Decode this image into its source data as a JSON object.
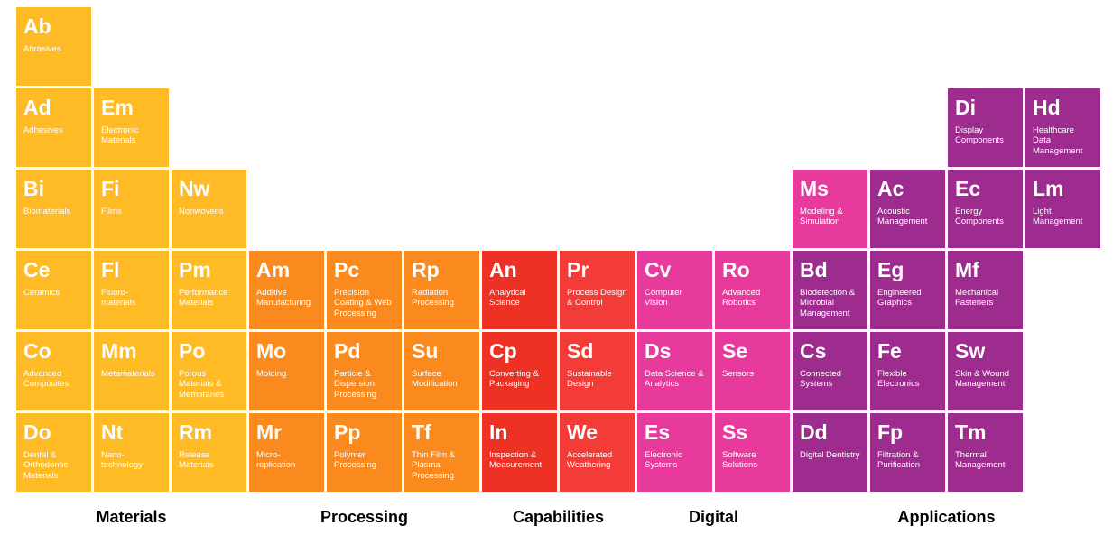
{
  "colors": {
    "materials": "#febb25",
    "processing": "#fa8a1e",
    "capabilities1": "#ed3124",
    "capabilities2": "#f33b38",
    "digital": "#e83a9c",
    "applications": "#9e2b8e"
  },
  "categories": [
    {
      "label": "Materials",
      "col_start": 1,
      "col_span": 3
    },
    {
      "label": "Processing",
      "col_start": 4,
      "col_span": 3
    },
    {
      "label": "Capabilities",
      "col_start": 7,
      "col_span": 2
    },
    {
      "label": "Digital",
      "col_start": 9,
      "col_span": 2
    },
    {
      "label": "Applications",
      "col_start": 11,
      "col_span": 4
    }
  ],
  "cells": [
    {
      "row": 1,
      "col": 1,
      "symbol": "Ab",
      "name": "Abrasives",
      "color_key": "materials"
    },
    {
      "row": 2,
      "col": 1,
      "symbol": "Ad",
      "name": "Adhesives",
      "color_key": "materials"
    },
    {
      "row": 2,
      "col": 2,
      "symbol": "Em",
      "name": "Electronic Materials",
      "color_key": "materials"
    },
    {
      "row": 2,
      "col": 13,
      "symbol": "Di",
      "name": "Display Components",
      "color_key": "applications"
    },
    {
      "row": 2,
      "col": 14,
      "symbol": "Hd",
      "name": "Healthcare Data Management",
      "color_key": "applications"
    },
    {
      "row": 3,
      "col": 1,
      "symbol": "Bi",
      "name": "Biomaterials",
      "color_key": "materials"
    },
    {
      "row": 3,
      "col": 2,
      "symbol": "Fi",
      "name": "Films",
      "color_key": "materials"
    },
    {
      "row": 3,
      "col": 3,
      "symbol": "Nw",
      "name": "Nonwovens",
      "color_key": "materials"
    },
    {
      "row": 3,
      "col": 11,
      "symbol": "Ms",
      "name": "Modeling & Simulation",
      "color_key": "digital"
    },
    {
      "row": 3,
      "col": 12,
      "symbol": "Ac",
      "name": "Acoustic Management",
      "color_key": "applications"
    },
    {
      "row": 3,
      "col": 13,
      "symbol": "Ec",
      "name": "Energy Components",
      "color_key": "applications"
    },
    {
      "row": 3,
      "col": 14,
      "symbol": "Lm",
      "name": "Light Management",
      "color_key": "applications"
    },
    {
      "row": 4,
      "col": 1,
      "symbol": "Ce",
      "name": "Ceramics",
      "color_key": "materials"
    },
    {
      "row": 4,
      "col": 2,
      "symbol": "Fl",
      "name": "Fluoro-materials",
      "color_key": "materials"
    },
    {
      "row": 4,
      "col": 3,
      "symbol": "Pm",
      "name": "Performance Materials",
      "color_key": "materials"
    },
    {
      "row": 4,
      "col": 4,
      "symbol": "Am",
      "name": "Additive Manufacturing",
      "color_key": "processing"
    },
    {
      "row": 4,
      "col": 5,
      "symbol": "Pc",
      "name": "Precision Coating & Web Processing",
      "color_key": "processing"
    },
    {
      "row": 4,
      "col": 6,
      "symbol": "Rp",
      "name": "Radiation Processing",
      "color_key": "processing"
    },
    {
      "row": 4,
      "col": 7,
      "symbol": "An",
      "name": "Analytical Science",
      "color_key": "capabilities1"
    },
    {
      "row": 4,
      "col": 8,
      "symbol": "Pr",
      "name": "Process Design & Control",
      "color_key": "capabilities2"
    },
    {
      "row": 4,
      "col": 9,
      "symbol": "Cv",
      "name": "Computer Vision",
      "color_key": "digital"
    },
    {
      "row": 4,
      "col": 10,
      "symbol": "Ro",
      "name": "Advanced Robotics",
      "color_key": "digital"
    },
    {
      "row": 4,
      "col": 11,
      "symbol": "Bd",
      "name": "Biodetection & Microbial Management",
      "color_key": "applications"
    },
    {
      "row": 4,
      "col": 12,
      "symbol": "Eg",
      "name": "Engineered Graphics",
      "color_key": "applications"
    },
    {
      "row": 4,
      "col": 13,
      "symbol": "Mf",
      "name": "Mechanical Fasteners",
      "color_key": "applications"
    },
    {
      "row": 5,
      "col": 1,
      "symbol": "Co",
      "name": "Advanced Composites",
      "color_key": "materials"
    },
    {
      "row": 5,
      "col": 2,
      "symbol": "Mm",
      "name": "Metamaterials",
      "color_key": "materials"
    },
    {
      "row": 5,
      "col": 3,
      "symbol": "Po",
      "name": "Porous Materials & Membranes",
      "color_key": "materials"
    },
    {
      "row": 5,
      "col": 4,
      "symbol": "Mo",
      "name": "Molding",
      "color_key": "processing"
    },
    {
      "row": 5,
      "col": 5,
      "symbol": "Pd",
      "name": "Particle & Dispersion Processing",
      "color_key": "processing"
    },
    {
      "row": 5,
      "col": 6,
      "symbol": "Su",
      "name": "Surface Modification",
      "color_key": "processing"
    },
    {
      "row": 5,
      "col": 7,
      "symbol": "Cp",
      "name": "Converting & Packaging",
      "color_key": "capabilities1"
    },
    {
      "row": 5,
      "col": 8,
      "symbol": "Sd",
      "name": "Sustainable Design",
      "color_key": "capabilities2"
    },
    {
      "row": 5,
      "col": 9,
      "symbol": "Ds",
      "name": "Data Science & Analytics",
      "color_key": "digital"
    },
    {
      "row": 5,
      "col": 10,
      "symbol": "Se",
      "name": "Sensors",
      "color_key": "digital"
    },
    {
      "row": 5,
      "col": 11,
      "symbol": "Cs",
      "name": "Connected Systems",
      "color_key": "applications"
    },
    {
      "row": 5,
      "col": 12,
      "symbol": "Fe",
      "name": "Flexible Electronics",
      "color_key": "applications"
    },
    {
      "row": 5,
      "col": 13,
      "symbol": "Sw",
      "name": "Skin & Wound Management",
      "color_key": "applications"
    },
    {
      "row": 6,
      "col": 1,
      "symbol": "Do",
      "name": "Dental & Orthodontic Materials",
      "color_key": "materials"
    },
    {
      "row": 6,
      "col": 2,
      "symbol": "Nt",
      "name": "Nano-technology",
      "color_key": "materials"
    },
    {
      "row": 6,
      "col": 3,
      "symbol": "Rm",
      "name": "Release Materials",
      "color_key": "materials"
    },
    {
      "row": 6,
      "col": 4,
      "symbol": "Mr",
      "name": "Micro-replication",
      "color_key": "processing"
    },
    {
      "row": 6,
      "col": 5,
      "symbol": "Pp",
      "name": "Polymer Processing",
      "color_key": "processing"
    },
    {
      "row": 6,
      "col": 6,
      "symbol": "Tf",
      "name": "Thin Film & Plasma Processing",
      "color_key": "processing"
    },
    {
      "row": 6,
      "col": 7,
      "symbol": "In",
      "name": "Inspection & Measurement",
      "color_key": "capabilities1"
    },
    {
      "row": 6,
      "col": 8,
      "symbol": "We",
      "name": "Accelerated Weathering",
      "color_key": "capabilities2"
    },
    {
      "row": 6,
      "col": 9,
      "symbol": "Es",
      "name": "Electronic Systems",
      "color_key": "digital"
    },
    {
      "row": 6,
      "col": 10,
      "symbol": "Ss",
      "name": "Software Solutions",
      "color_key": "digital"
    },
    {
      "row": 6,
      "col": 11,
      "symbol": "Dd",
      "name": "Digital Dentistry",
      "color_key": "applications"
    },
    {
      "row": 6,
      "col": 12,
      "symbol": "Fp",
      "name": "Filtration & Purification",
      "color_key": "applications"
    },
    {
      "row": 6,
      "col": 13,
      "symbol": "Tm",
      "name": "Thermal Management",
      "color_key": "applications"
    }
  ],
  "row4_col11_span": {
    "note": "Bd spans into col 11; Eg col12; Mf col13; col14 empty row4"
  },
  "layout_adjustments": [
    {
      "symbol": "Bd",
      "col": 11
    },
    {
      "symbol": "Eg",
      "col": 12
    },
    {
      "symbol": "Mf",
      "col": 13
    }
  ]
}
